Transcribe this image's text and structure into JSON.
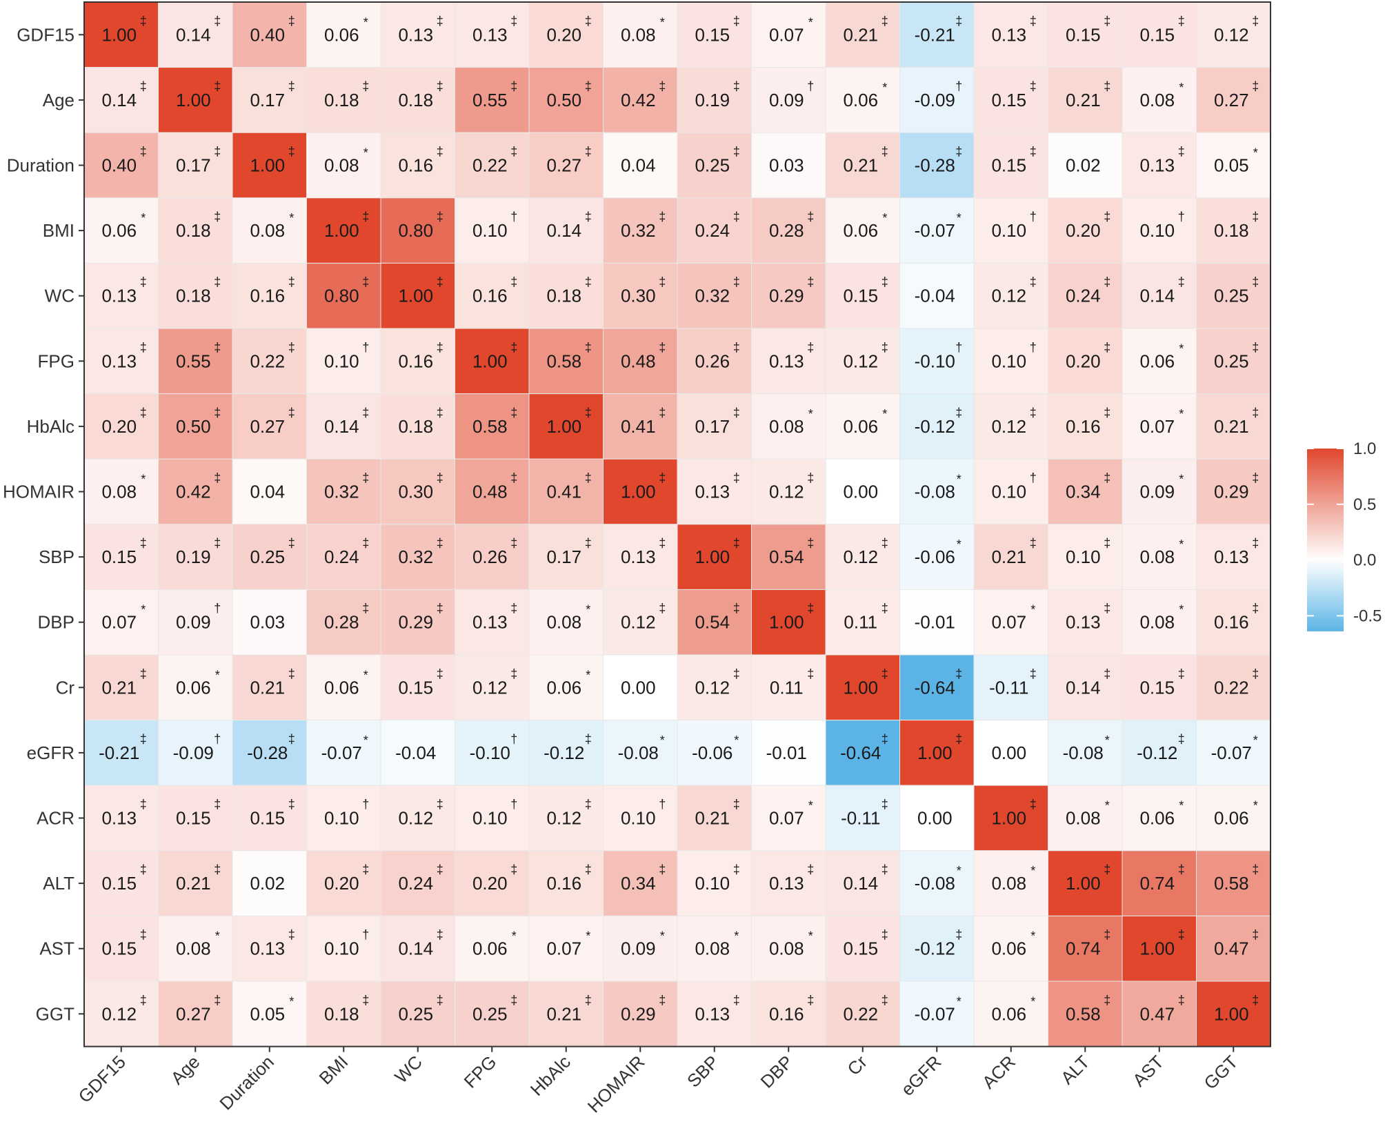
{
  "chart_data": {
    "type": "heatmap",
    "variables": [
      "GDF15",
      "Age",
      "Duration",
      "BMI",
      "WC",
      "FPG",
      "HbAlc",
      "HOMAIR",
      "SBP",
      "DBP",
      "Cr",
      "eGFR",
      "ACR",
      "ALT",
      "AST",
      "GGT"
    ],
    "values": [
      [
        1.0,
        0.14,
        0.4,
        0.06,
        0.13,
        0.13,
        0.2,
        0.08,
        0.15,
        0.07,
        0.21,
        -0.21,
        0.13,
        0.15,
        0.15,
        0.12
      ],
      [
        0.14,
        1.0,
        0.17,
        0.18,
        0.18,
        0.55,
        0.5,
        0.42,
        0.19,
        0.09,
        0.06,
        -0.09,
        0.15,
        0.21,
        0.08,
        0.27
      ],
      [
        0.4,
        0.17,
        1.0,
        0.08,
        0.16,
        0.22,
        0.27,
        0.04,
        0.25,
        0.03,
        0.21,
        -0.28,
        0.15,
        0.02,
        0.13,
        0.05
      ],
      [
        0.06,
        0.18,
        0.08,
        1.0,
        0.8,
        0.1,
        0.14,
        0.32,
        0.24,
        0.28,
        0.06,
        -0.07,
        0.1,
        0.2,
        0.1,
        0.18
      ],
      [
        0.13,
        0.18,
        0.16,
        0.8,
        1.0,
        0.16,
        0.18,
        0.3,
        0.32,
        0.29,
        0.15,
        -0.04,
        0.12,
        0.24,
        0.14,
        0.25
      ],
      [
        0.13,
        0.55,
        0.22,
        0.1,
        0.16,
        1.0,
        0.58,
        0.48,
        0.26,
        0.13,
        0.12,
        -0.1,
        0.1,
        0.2,
        0.06,
        0.25
      ],
      [
        0.2,
        0.5,
        0.27,
        0.14,
        0.18,
        0.58,
        1.0,
        0.41,
        0.17,
        0.08,
        0.06,
        -0.12,
        0.12,
        0.16,
        0.07,
        0.21
      ],
      [
        0.08,
        0.42,
        0.04,
        0.32,
        0.3,
        0.48,
        0.41,
        1.0,
        0.13,
        0.12,
        0.0,
        -0.08,
        0.1,
        0.34,
        0.09,
        0.29
      ],
      [
        0.15,
        0.19,
        0.25,
        0.24,
        0.32,
        0.26,
        0.17,
        0.13,
        1.0,
        0.54,
        0.12,
        -0.06,
        0.21,
        0.1,
        0.08,
        0.13
      ],
      [
        0.07,
        0.09,
        0.03,
        0.28,
        0.29,
        0.13,
        0.08,
        0.12,
        0.54,
        1.0,
        0.11,
        -0.01,
        0.07,
        0.13,
        0.08,
        0.16
      ],
      [
        0.21,
        0.06,
        0.21,
        0.06,
        0.15,
        0.12,
        0.06,
        0.0,
        0.12,
        0.11,
        1.0,
        -0.64,
        -0.11,
        0.14,
        0.15,
        0.22
      ],
      [
        -0.21,
        -0.09,
        -0.28,
        -0.07,
        -0.04,
        -0.1,
        -0.12,
        -0.08,
        -0.06,
        -0.01,
        -0.64,
        1.0,
        0.0,
        -0.08,
        -0.12,
        -0.07
      ],
      [
        0.13,
        0.15,
        0.15,
        0.1,
        0.12,
        0.1,
        0.12,
        0.1,
        0.21,
        0.07,
        -0.11,
        0.0,
        1.0,
        0.08,
        0.06,
        0.06
      ],
      [
        0.15,
        0.21,
        0.02,
        0.2,
        0.24,
        0.2,
        0.16,
        0.34,
        0.1,
        0.13,
        0.14,
        -0.08,
        0.08,
        1.0,
        0.74,
        0.58
      ],
      [
        0.15,
        0.08,
        0.13,
        0.1,
        0.14,
        0.06,
        0.07,
        0.09,
        0.08,
        0.08,
        0.15,
        -0.12,
        0.06,
        0.74,
        1.0,
        0.47
      ],
      [
        0.12,
        0.27,
        0.05,
        0.18,
        0.25,
        0.25,
        0.21,
        0.29,
        0.13,
        0.16,
        0.22,
        -0.07,
        0.06,
        0.58,
        0.47,
        1.0
      ]
    ],
    "significance": [
      [
        "‡",
        "‡",
        "‡",
        "*",
        "‡",
        "‡",
        "‡",
        "*",
        "‡",
        "*",
        "‡",
        "‡",
        "‡",
        "‡",
        "‡",
        "‡"
      ],
      [
        "‡",
        "‡",
        "‡",
        "‡",
        "‡",
        "‡",
        "‡",
        "‡",
        "‡",
        "†",
        "*",
        "†",
        "‡",
        "‡",
        "*",
        "‡"
      ],
      [
        "‡",
        "‡",
        "‡",
        "*",
        "‡",
        "‡",
        "‡",
        "",
        "‡",
        "",
        "‡",
        "‡",
        "‡",
        "",
        "‡",
        "*"
      ],
      [
        "*",
        "‡",
        "*",
        "‡",
        "‡",
        "†",
        "‡",
        "‡",
        "‡",
        "‡",
        "*",
        "*",
        "†",
        "‡",
        "†",
        "‡"
      ],
      [
        "‡",
        "‡",
        "‡",
        "‡",
        "‡",
        "‡",
        "‡",
        "‡",
        "‡",
        "‡",
        "‡",
        "",
        "‡",
        "‡",
        "‡",
        "‡"
      ],
      [
        "‡",
        "‡",
        "‡",
        "†",
        "‡",
        "‡",
        "‡",
        "‡",
        "‡",
        "‡",
        "‡",
        "†",
        "†",
        "‡",
        "*",
        "‡"
      ],
      [
        "‡",
        "‡",
        "‡",
        "‡",
        "‡",
        "‡",
        "‡",
        "‡",
        "‡",
        "*",
        "*",
        "‡",
        "‡",
        "‡",
        "*",
        "‡"
      ],
      [
        "*",
        "‡",
        "",
        "‡",
        "‡",
        "‡",
        "‡",
        "‡",
        "‡",
        "‡",
        "",
        "*",
        "†",
        "‡",
        "*",
        "‡"
      ],
      [
        "‡",
        "‡",
        "‡",
        "‡",
        "‡",
        "‡",
        "‡",
        "‡",
        "‡",
        "‡",
        "‡",
        "*",
        "‡",
        "‡",
        "*",
        "‡"
      ],
      [
        "*",
        "†",
        "",
        "‡",
        "‡",
        "‡",
        "*",
        "‡",
        "‡",
        "‡",
        "‡",
        "",
        "*",
        "‡",
        "*",
        "‡"
      ],
      [
        "‡",
        "*",
        "‡",
        "*",
        "‡",
        "‡",
        "*",
        "",
        "‡",
        "‡",
        "‡",
        "‡",
        "‡",
        "‡",
        "‡",
        "‡"
      ],
      [
        "‡",
        "†",
        "‡",
        "*",
        "",
        "†",
        "‡",
        "*",
        "*",
        "",
        "‡",
        "‡",
        "",
        "*",
        "‡",
        "*"
      ],
      [
        "‡",
        "‡",
        "‡",
        "†",
        "‡",
        "†",
        "‡",
        "†",
        "‡",
        "*",
        "‡",
        "",
        "‡",
        "*",
        "*",
        "*"
      ],
      [
        "‡",
        "‡",
        "",
        "‡",
        "‡",
        "‡",
        "‡",
        "‡",
        "‡",
        "‡",
        "‡",
        "*",
        "*",
        "‡",
        "‡",
        "‡"
      ],
      [
        "‡",
        "*",
        "‡",
        "†",
        "‡",
        "*",
        "*",
        "*",
        "*",
        "*",
        "‡",
        "‡",
        "*",
        "‡",
        "‡",
        "‡"
      ],
      [
        "‡",
        "‡",
        "*",
        "‡",
        "‡",
        "‡",
        "‡",
        "‡",
        "‡",
        "‡",
        "‡",
        "*",
        "*",
        "‡",
        "‡",
        "‡"
      ]
    ],
    "color_scale": {
      "low_color": "#5bb4e5",
      "mid_color": "#ffffff",
      "high_color": "#e0472d",
      "limits": [
        -0.64,
        1.0
      ],
      "breaks": [
        1.0,
        0.5,
        0.0,
        -0.5
      ],
      "break_labels": [
        "1.0",
        "0.5",
        "0.0",
        "-0.5"
      ]
    },
    "legend_position": "right",
    "grid_color": "#e8e8e8",
    "border_color": "#333333"
  }
}
